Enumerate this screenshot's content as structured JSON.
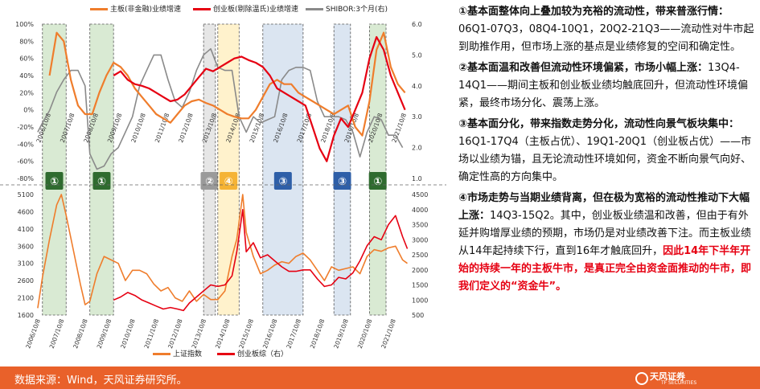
{
  "chart_data": [
    {
      "type": "line",
      "legend": [
        {
          "name": "主板(非金融)业绩增速",
          "color": "#ef7d2c"
        },
        {
          "name": "创业板(剔除温氏)业绩增速",
          "color": "#e60012"
        },
        {
          "name": "SHIBOR:3个月(右)",
          "color": "#8a8a8a"
        }
      ],
      "y_left": {
        "ticks": [
          "100%",
          "80%",
          "60%",
          "40%",
          "20%",
          "0%",
          "-20%",
          "-40%",
          "-60%",
          "-80%"
        ],
        "range": [
          -80,
          100
        ]
      },
      "y_right": {
        "ticks": [
          "6.0",
          "5.0",
          "4.0",
          "3.0",
          "2.0",
          "1.0"
        ],
        "range": [
          1.0,
          6.0
        ]
      },
      "x_ticks": [
        "2006/10/8",
        "2007/10/8",
        "2008/10/8",
        "2009/10/8",
        "2010/10/8",
        "2011/10/8",
        "2012/10/8",
        "2013/10/8",
        "2014/10/8",
        "2015/10/8",
        "2016/10/8",
        "2017/10/8",
        "2018/10/8",
        "2019/10/8",
        "2020/10/8",
        "2021/10/8"
      ],
      "series": [
        {
          "name": "主板(非金融)业绩增速",
          "x": [
            2007.3,
            2007.6,
            2007.9,
            2008.2,
            2008.5,
            2008.8,
            2009.1,
            2009.4,
            2009.7,
            2010.0,
            2010.3,
            2010.6,
            2010.9,
            2011.2,
            2011.5,
            2011.8,
            2012.1,
            2012.4,
            2012.7,
            2013.0,
            2013.3,
            2013.6,
            2013.9,
            2014.2,
            2014.5,
            2014.8,
            2015.1,
            2015.4,
            2015.7,
            2016.0,
            2016.3,
            2016.6,
            2016.9,
            2017.2,
            2017.5,
            2017.8,
            2018.1,
            2018.4,
            2018.7,
            2019.0,
            2019.3,
            2019.6,
            2019.9,
            2020.2,
            2020.5,
            2020.8,
            2021.1,
            2021.4,
            2021.7,
            2022.0,
            2022.3
          ],
          "values": [
            40,
            90,
            80,
            35,
            5,
            -5,
            -5,
            20,
            40,
            55,
            50,
            40,
            25,
            15,
            5,
            -5,
            -10,
            -15,
            -5,
            5,
            10,
            12,
            8,
            5,
            0,
            -5,
            -8,
            -10,
            -10,
            0,
            15,
            30,
            35,
            30,
            30,
            20,
            15,
            10,
            5,
            0,
            -5,
            0,
            5,
            -20,
            -30,
            10,
            70,
            90,
            50,
            30,
            20
          ]
        },
        {
          "name": "创业板(剔除温氏)业绩增速",
          "x": [
            2010.0,
            2010.3,
            2010.6,
            2010.9,
            2011.2,
            2011.5,
            2011.8,
            2012.1,
            2012.4,
            2012.7,
            2013.0,
            2013.3,
            2013.6,
            2013.9,
            2014.2,
            2014.5,
            2014.8,
            2015.1,
            2015.4,
            2015.7,
            2016.0,
            2016.3,
            2016.6,
            2016.9,
            2017.2,
            2017.5,
            2017.8,
            2018.1,
            2018.4,
            2018.7,
            2019.0,
            2019.3,
            2019.6,
            2019.9,
            2020.2,
            2020.5,
            2020.8,
            2021.1,
            2021.4,
            2021.7,
            2022.0,
            2022.3
          ],
          "values": [
            40,
            45,
            35,
            30,
            28,
            25,
            20,
            15,
            10,
            12,
            18,
            28,
            38,
            48,
            45,
            50,
            55,
            60,
            62,
            58,
            55,
            50,
            40,
            25,
            20,
            15,
            10,
            5,
            -20,
            -45,
            -60,
            -30,
            -10,
            -20,
            0,
            20,
            60,
            85,
            70,
            40,
            20,
            0
          ]
        },
        {
          "name": "SHIBOR:3个月(右)",
          "axis": "right",
          "x": [
            2006.8,
            2007.0,
            2007.3,
            2007.6,
            2007.9,
            2008.2,
            2008.5,
            2008.8,
            2009.0,
            2009.3,
            2009.6,
            2009.9,
            2010.2,
            2010.5,
            2010.8,
            2011.1,
            2011.4,
            2011.7,
            2012.0,
            2012.3,
            2012.6,
            2012.9,
            2013.2,
            2013.5,
            2013.8,
            2014.1,
            2014.4,
            2014.7,
            2015.0,
            2015.3,
            2015.6,
            2015.9,
            2016.2,
            2016.5,
            2016.8,
            2017.1,
            2017.4,
            2017.7,
            2018.0,
            2018.3,
            2018.6,
            2018.9,
            2019.2,
            2019.5,
            2019.8,
            2020.1,
            2020.4,
            2020.7,
            2021.0,
            2021.3,
            2021.6,
            2021.9,
            2022.2
          ],
          "values": [
            2.5,
            2.8,
            3.2,
            3.8,
            4.2,
            4.5,
            4.5,
            4.0,
            1.8,
            1.3,
            1.4,
            1.8,
            2.0,
            2.5,
            3.0,
            4.0,
            4.5,
            5.0,
            5.0,
            4.2,
            3.5,
            3.3,
            3.8,
            4.5,
            5.0,
            5.2,
            4.6,
            4.5,
            4.5,
            3.0,
            2.5,
            3.0,
            2.8,
            2.9,
            3.0,
            4.2,
            4.5,
            4.6,
            4.6,
            4.5,
            3.5,
            3.0,
            3.0,
            3.0,
            2.9,
            2.5,
            1.7,
            2.5,
            3.0,
            2.9,
            2.4,
            2.4,
            2.0
          ]
        }
      ],
      "regions": [
        {
          "from": 2007.0,
          "to": 2008.0,
          "color": "#d9ead3",
          "label": "①"
        },
        {
          "from": 2009.0,
          "to": 2010.0,
          "color": "#d9ead3",
          "label": "①"
        },
        {
          "from": 2013.8,
          "to": 2014.3,
          "color": "#e6e6e6",
          "label": "②"
        },
        {
          "from": 2014.4,
          "to": 2015.3,
          "color": "#fff2cc",
          "label": "④"
        },
        {
          "from": 2016.3,
          "to": 2018.0,
          "color": "#dbe5f1",
          "label": "③"
        },
        {
          "from": 2019.3,
          "to": 2020.0,
          "color": "#dbe5f1",
          "label": "③"
        },
        {
          "from": 2020.8,
          "to": 2021.5,
          "color": "#d9ead3",
          "label": "①"
        }
      ]
    },
    {
      "type": "line",
      "legend": [
        {
          "name": "上证指数",
          "color": "#ef7d2c"
        },
        {
          "name": "创业板综（右）",
          "color": "#e60012"
        }
      ],
      "y_left": {
        "ticks": [
          "5100",
          "4600",
          "4100",
          "3600",
          "3100",
          "2600",
          "2100",
          "1600"
        ],
        "range": [
          1600,
          5100
        ]
      },
      "y_right": {
        "ticks": [
          "4500",
          "4000",
          "3500",
          "3000",
          "2500",
          "2000",
          "1500",
          "1000",
          "500"
        ],
        "range": [
          500,
          4500
        ]
      },
      "series": [
        {
          "name": "上证指数",
          "x": [
            2006.8,
            2007.0,
            2007.3,
            2007.6,
            2007.8,
            2008.0,
            2008.3,
            2008.6,
            2008.8,
            2009.0,
            2009.3,
            2009.6,
            2009.9,
            2010.2,
            2010.5,
            2010.8,
            2011.1,
            2011.4,
            2011.7,
            2012.0,
            2012.3,
            2012.6,
            2012.9,
            2013.2,
            2013.5,
            2013.8,
            2014.1,
            2014.4,
            2014.7,
            2015.0,
            2015.2,
            2015.45,
            2015.6,
            2015.9,
            2016.2,
            2016.5,
            2016.8,
            2017.1,
            2017.4,
            2017.7,
            2018.0,
            2018.3,
            2018.6,
            2018.9,
            2019.2,
            2019.5,
            2019.8,
            2020.1,
            2020.4,
            2020.7,
            2021.0,
            2021.3,
            2021.6,
            2021.9,
            2022.2,
            2022.4
          ],
          "values": [
            1800,
            2700,
            3800,
            4800,
            5100,
            4500,
            3500,
            2500,
            1900,
            2000,
            2800,
            3300,
            3200,
            3100,
            2600,
            2900,
            2900,
            2800,
            2500,
            2300,
            2400,
            2100,
            2000,
            2300,
            2000,
            2200,
            2050,
            2050,
            2300,
            3300,
            3800,
            5100,
            4000,
            3300,
            2800,
            2900,
            3050,
            3150,
            3100,
            3300,
            3400,
            3200,
            2900,
            2600,
            3000,
            2900,
            2950,
            3000,
            2800,
            3300,
            3500,
            3450,
            3550,
            3600,
            3200,
            3100
          ]
        },
        {
          "name": "创业板综（右）",
          "axis": "right",
          "x": [
            2010.0,
            2010.3,
            2010.6,
            2010.9,
            2011.2,
            2011.5,
            2011.8,
            2012.1,
            2012.4,
            2012.7,
            2012.95,
            2013.2,
            2013.5,
            2013.8,
            2014.1,
            2014.4,
            2014.7,
            2015.0,
            2015.2,
            2015.45,
            2015.6,
            2015.9,
            2016.2,
            2016.5,
            2016.8,
            2017.1,
            2017.4,
            2017.7,
            2018.0,
            2018.3,
            2018.6,
            2018.9,
            2019.2,
            2019.5,
            2019.8,
            2020.1,
            2020.4,
            2020.7,
            2021.0,
            2021.3,
            2021.6,
            2021.9,
            2022.2,
            2022.4
          ],
          "values": [
            1000,
            1100,
            1250,
            1150,
            1000,
            900,
            800,
            700,
            750,
            700,
            650,
            900,
            1100,
            1300,
            1500,
            1450,
            1500,
            1800,
            2600,
            4000,
            2600,
            2900,
            2400,
            2500,
            2300,
            2100,
            1950,
            1950,
            2000,
            2000,
            1700,
            1450,
            1500,
            1750,
            1700,
            1900,
            2300,
            2800,
            3100,
            3000,
            3500,
            3800,
            3100,
            2700
          ]
        }
      ]
    }
  ],
  "text_panel": {
    "p1_bold": "①基本面整体向上叠加较为充裕的流动性，带来普涨行情：",
    "p1_rest": "06Q1-07Q3，08Q4-10Q1，20Q2-21Q3——流动性对牛市起到助推作用，但市场上涨的基点是业绩修复的空间和确定性。",
    "p2_bold": "②基本面温和改善但流动性环境偏紧，市场小幅上涨：",
    "p2_rest": "13Q4-14Q1——期间主板和创业板业绩均触底回升，但流动性环境偏紧，最终市场分化、震荡上涨。",
    "p3_bold": "③基本面分化，带来指数走势分化，流动性向景气板块集中：",
    "p3_rest": "16Q1-17Q4（主板占优）、19Q1-20Q1（创业板占优）——市场以业绩为锚，且无论流动性环境如何，资金不断向景气向好、确定性高的方向集中。",
    "p4_bold": "④市场走势与当期业绩背离，但在极为宽裕的流动性推动下大幅上涨：",
    "p4_rest": "14Q3-15Q2。其中，创业板业绩温和改善，但由于有外延并购增厚业绩的预期，市场仍是对业绩改善下注。而主板业绩从14年起持续下行，直到16年才触底回升，",
    "p4_red": "因此14年下半年开始的持续一年的主板牛市，是真正完全由资金面推动的牛市，即我们定义的“资金牛”。"
  },
  "footer": {
    "source": "数据来源：Wind，天风证券研究所。",
    "logo_cn": "天风证券",
    "logo_en": "TF SECURITIES"
  }
}
